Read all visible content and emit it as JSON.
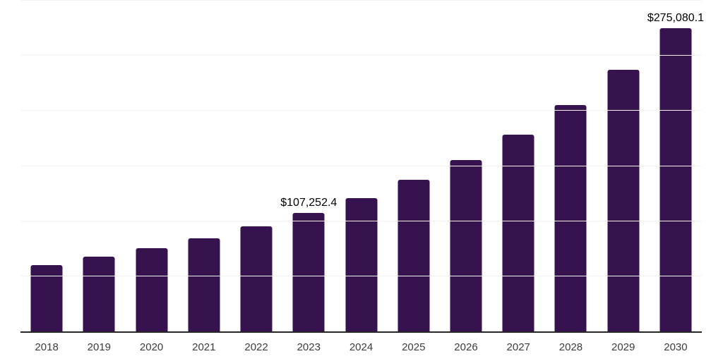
{
  "chart_data": {
    "type": "bar",
    "title": "",
    "xlabel": "",
    "ylabel": "",
    "categories": [
      "2018",
      "2019",
      "2020",
      "2021",
      "2022",
      "2023",
      "2024",
      "2025",
      "2026",
      "2027",
      "2028",
      "2029",
      "2030"
    ],
    "values": [
      60100,
      67600,
      75500,
      84400,
      95300,
      107252.4,
      120900,
      137500,
      155600,
      178700,
      205300,
      237300,
      275080.1
    ],
    "point_labels": [
      "",
      "",
      "",
      "",
      "",
      "$107,252.4",
      "",
      "",
      "",
      "",
      "",
      "",
      "$275,080.1"
    ],
    "ylim": [
      0,
      300000
    ],
    "gridlines": [
      50000,
      100000,
      150000,
      200000,
      250000,
      300000
    ],
    "grid": "horizontal-only",
    "y_tick_labels_visible": false,
    "legend": "none",
    "colors": {
      "bar": "#36124e",
      "gridline": "#f2f2f2",
      "axis_line": "#262626",
      "tick_label": "#3c3c3c",
      "data_label": "#000000"
    }
  }
}
